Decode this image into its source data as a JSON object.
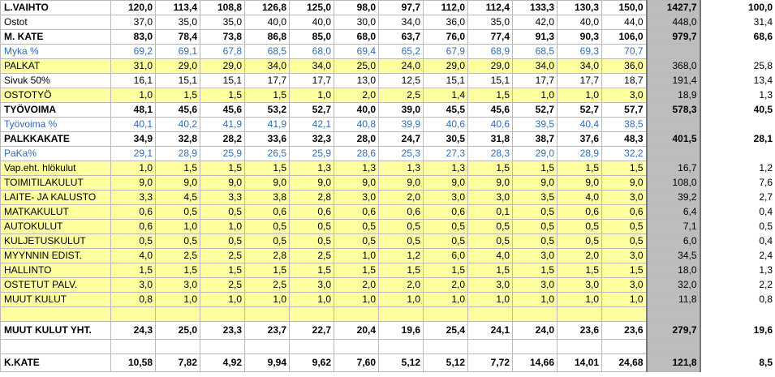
{
  "rows": [
    {
      "label": "L.VAIHTO",
      "values": [
        "120,0",
        "113,4",
        "108,8",
        "126,8",
        "125,0",
        "98,0",
        "97,7",
        "112,0",
        "112,4",
        "133,3",
        "130,3",
        "150,0"
      ],
      "total": "1427,7",
      "pct": "100,0",
      "style": "bold"
    },
    {
      "label": "Ostot",
      "values": [
        "37,0",
        "35,0",
        "35,0",
        "40,0",
        "40,0",
        "30,0",
        "34,0",
        "36,0",
        "35,0",
        "42,0",
        "40,0",
        "44,0"
      ],
      "total": "448,0",
      "pct": "31,4",
      "style": "plain"
    },
    {
      "label": "M. KATE",
      "values": [
        "83,0",
        "78,4",
        "73,8",
        "86,8",
        "85,0",
        "68,0",
        "63,7",
        "76,0",
        "77,4",
        "91,3",
        "90,3",
        "106,0"
      ],
      "total": "979,7",
      "pct": "68,6",
      "style": "bold"
    },
    {
      "label": "Myka %",
      "values": [
        "69,2",
        "69,1",
        "67,8",
        "68,5",
        "68,0",
        "69,4",
        "65,2",
        "67,9",
        "68,9",
        "68,5",
        "69,3",
        "70,7"
      ],
      "total": "",
      "pct": "",
      "style": "blue"
    },
    {
      "label": "PALKAT",
      "values": [
        "31,0",
        "29,0",
        "29,0",
        "34,0",
        "34,0",
        "25,0",
        "24,0",
        "29,0",
        "29,0",
        "34,0",
        "34,0",
        "36,0"
      ],
      "total": "368,0",
      "pct": "25,8",
      "style": "yellow"
    },
    {
      "label": " Sivuk 50%",
      "values": [
        "16,1",
        "15,1",
        "15,1",
        "17,7",
        "17,7",
        "13,0",
        "12,5",
        "15,1",
        "15,1",
        "17,7",
        "17,7",
        "18,7"
      ],
      "total": "191,4",
      "pct": "13,4",
      "style": "plain"
    },
    {
      "label": "OSTOTYÖ",
      "values": [
        "1,0",
        "1,5",
        "1,5",
        "1,5",
        "1,0",
        "2,0",
        "2,5",
        "1,4",
        "1,5",
        "1,0",
        "1,0",
        "3,0"
      ],
      "total": "18,9",
      "pct": "1,3",
      "style": "yellow"
    },
    {
      "label": "TYÖVOIMA",
      "values": [
        "48,1",
        "45,6",
        "45,6",
        "53,2",
        "52,7",
        "40,0",
        "39,0",
        "45,5",
        "45,6",
        "52,7",
        "52,7",
        "57,7"
      ],
      "total": "578,3",
      "pct": "40,5",
      "style": "bold"
    },
    {
      "label": "Työvoima %",
      "values": [
        "40,1",
        "40,2",
        "41,9",
        "41,9",
        "42,1",
        "40,8",
        "39,9",
        "40,6",
        "40,6",
        "39,5",
        "40,4",
        "38,5"
      ],
      "total": "",
      "pct": "",
      "style": "blue"
    },
    {
      "label": "PALKKAKATE",
      "values": [
        "34,9",
        "32,8",
        "28,2",
        "33,6",
        "32,3",
        "28,0",
        "24,7",
        "30,5",
        "31,8",
        "38,7",
        "37,6",
        "48,3"
      ],
      "total": "401,5",
      "pct": "28,1",
      "style": "bold"
    },
    {
      "label": "PaKa%",
      "values": [
        "29,1",
        "28,9",
        "25,9",
        "26,5",
        "25,9",
        "28,6",
        "25,3",
        "27,3",
        "28,3",
        "29,0",
        "28,9",
        "32,2"
      ],
      "total": "",
      "pct": "",
      "style": "blue"
    },
    {
      "label": "Vap.eht. hlökulut",
      "values": [
        "1,0",
        "1,5",
        "1,5",
        "1,5",
        "1,3",
        "1,3",
        "1,3",
        "1,3",
        "1,5",
        "1,5",
        "1,5",
        "1,5"
      ],
      "total": "16,7",
      "pct": "1,2",
      "style": "yellow"
    },
    {
      "label": "TOIMITILAKULUT",
      "values": [
        "9,0",
        "9,0",
        "9,0",
        "9,0",
        "9,0",
        "9,0",
        "9,0",
        "9,0",
        "9,0",
        "9,0",
        "9,0",
        "9,0"
      ],
      "total": "108,0",
      "pct": "7,6",
      "style": "yellow"
    },
    {
      "label": "LAITE- JA KALUSTO",
      "values": [
        "3,3",
        "4,5",
        "3,3",
        "3,8",
        "2,8",
        "3,0",
        "2,0",
        "3,0",
        "3,0",
        "3,5",
        "4,0",
        "3,0"
      ],
      "total": "39,2",
      "pct": "2,7",
      "style": "yellow"
    },
    {
      "label": "MATKAKULUT",
      "values": [
        "0,6",
        "0,5",
        "0,5",
        "0,6",
        "0,6",
        "0,6",
        "0,6",
        "0,6",
        "0,1",
        "0,5",
        "0,6",
        "0,6"
      ],
      "total": "6,4",
      "pct": "0,4",
      "style": "yellow"
    },
    {
      "label": "AUTOKULUT",
      "values": [
        "0,6",
        "1,0",
        "1,0",
        "0,5",
        "0,5",
        "0,5",
        "0,5",
        "0,5",
        "0,5",
        "0,5",
        "0,5",
        "0,5"
      ],
      "total": "7,1",
      "pct": "0,5",
      "style": "yellow"
    },
    {
      "label": "KULJETUSKULUT",
      "values": [
        "0,5",
        "0,5",
        "0,5",
        "0,5",
        "0,5",
        "0,5",
        "0,5",
        "0,5",
        "0,5",
        "0,5",
        "0,5",
        "0,5"
      ],
      "total": "6,0",
      "pct": "0,4",
      "style": "yellow"
    },
    {
      "label": "MYYNNIN EDIST.",
      "values": [
        "4,0",
        "2,5",
        "2,5",
        "2,8",
        "2,5",
        "1,0",
        "1,2",
        "6,0",
        "4,0",
        "3,0",
        "2,0",
        "3,0"
      ],
      "total": "34,5",
      "pct": "2,4",
      "style": "yellow"
    },
    {
      "label": "HALLINTO",
      "values": [
        "1,5",
        "1,5",
        "1,5",
        "1,5",
        "1,5",
        "1,5",
        "1,5",
        "1,5",
        "1,5",
        "1,5",
        "1,5",
        "1,5"
      ],
      "total": "18,0",
      "pct": "1,3",
      "style": "yellow"
    },
    {
      "label": "OSTETUT PALV.",
      "values": [
        "3,0",
        "3,0",
        "2,5",
        "2,5",
        "3,0",
        "2,0",
        "2,0",
        "2,0",
        "3,0",
        "3,0",
        "3,0",
        "3,0"
      ],
      "total": "32,0",
      "pct": "2,2",
      "style": "yellow"
    },
    {
      "label": "MUUT KULUT",
      "values": [
        "0,8",
        "1,0",
        "1,0",
        "1,0",
        "1,0",
        "1,0",
        "1,0",
        "1,0",
        "1,0",
        "1,0",
        "1,0",
        "1,0"
      ],
      "total": "11,8",
      "pct": "0,8",
      "style": "yellow"
    },
    {
      "label": "",
      "values": [
        "",
        "",
        "",
        "",
        "",
        "",
        "",
        "",
        "",
        "",
        "",
        ""
      ],
      "total": "",
      "pct": "",
      "style": "yellow"
    },
    {
      "label": "MUUT KULUT YHT.",
      "values": [
        "24,3",
        "25,0",
        "23,3",
        "23,7",
        "22,7",
        "20,4",
        "19,6",
        "25,4",
        "24,1",
        "24,0",
        "23,6",
        "23,6"
      ],
      "total": "279,7",
      "pct": "19,6",
      "style": "boldtall"
    },
    {
      "label": "",
      "values": [
        "",
        "",
        "",
        "",
        "",
        "",
        "",
        "",
        "",
        "",
        "",
        ""
      ],
      "total": "",
      "pct": "",
      "style": "blank"
    },
    {
      "label": "K.KATE",
      "values": [
        "10,58",
        "7,82",
        "4,92",
        "9,94",
        "9,62",
        "7,60",
        "5,12",
        "5,12",
        "7,72",
        "14,66",
        "14,01",
        "24,68"
      ],
      "total": "121,8",
      "pct": "8,5",
      "style": "boldtall"
    }
  ]
}
